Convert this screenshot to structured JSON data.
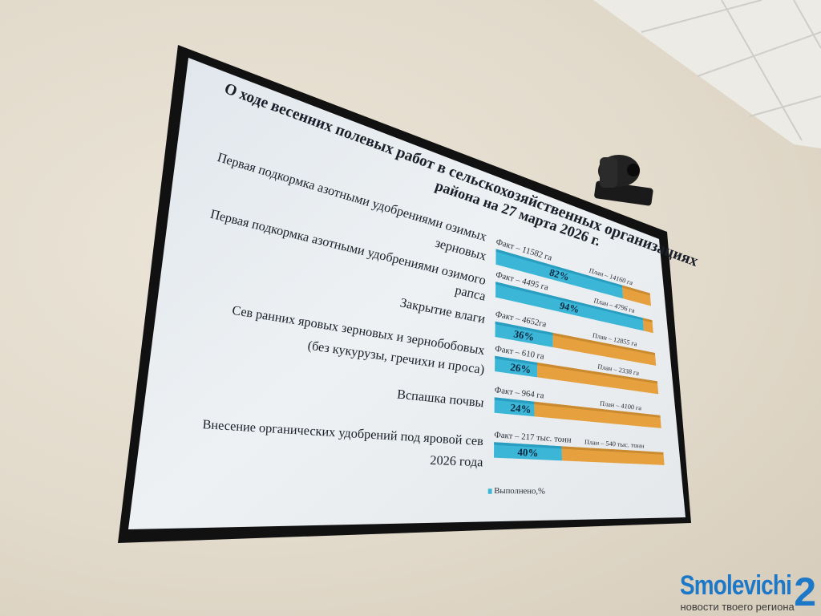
{
  "chart_data": {
    "type": "bar",
    "orientation": "horizontal",
    "stacked": true,
    "title": [
      "О ходе весенних полевых работ в сельскохозяйственных организациях",
      "района на 27 марта 2026 г."
    ],
    "categories": [
      [
        "Первая подкормка азотными удобрениями озимых",
        "зерновых"
      ],
      [
        "Первая подкормка азотными удобрениями озимого",
        "рапса"
      ],
      [
        "Закрытие влаги"
      ],
      [
        "Сев ранних яровых зерновых и зернобобовых",
        "(без кукурузы, гречихи и проса)"
      ],
      [
        "Вспашка почвы"
      ],
      [
        "Внесение органических удобрений под яровой сев",
        "2026 года"
      ]
    ],
    "fact": [
      11582,
      4495,
      4652,
      610,
      964,
      217
    ],
    "plan": [
      14160,
      4796,
      12855,
      2338,
      4100,
      540
    ],
    "percent": [
      82,
      94,
      36,
      26,
      24,
      40
    ],
    "fact_labels": [
      "Факт – 11582 га",
      "Факт – 4495 га",
      "Факт – 4652га",
      "Факт – 610 га",
      "Факт – 964 га",
      "Факт – 217 тыс. тонн"
    ],
    "plan_labels": [
      "План – 14160 га",
      "План – 4796 га",
      "План – 12855 га",
      "План – 2338 га",
      "План – 4100 га",
      "План – 540 тыс. тонн"
    ],
    "percent_labels": [
      "82%",
      "94%",
      "36%",
      "26%",
      "24%",
      "40%"
    ],
    "legend": {
      "label": "Выполнено,%",
      "placement": "bottom"
    },
    "colors": {
      "done": "#3bb6d6",
      "remaining": "#e6a03e"
    },
    "xlim": [
      0,
      100
    ],
    "grid": false
  },
  "watermark": {
    "name": "Smolevichi",
    "number": "2",
    "tagline": "новости твоего региона"
  }
}
